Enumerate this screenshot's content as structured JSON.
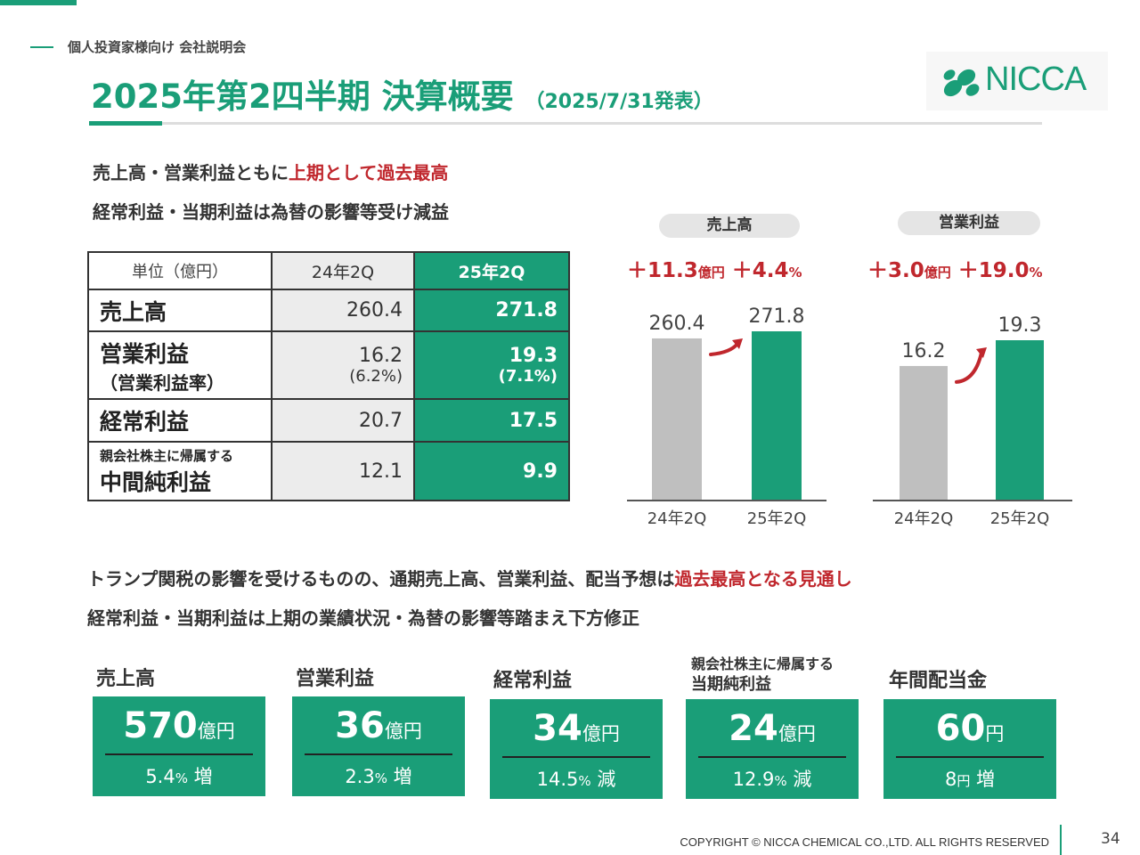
{
  "header": {
    "subtitle": "個人投資家様向け 会社説明会",
    "title": "2025年第2四半期 決算概要",
    "title_date": "（2025/7/31発表）",
    "logo_text": "NICCA"
  },
  "headline1": {
    "part1": "売上高・営業利益ともに",
    "highlight": "上期として過去最高"
  },
  "headline2": "経常利益・当期利益は為替の影響等受け減益",
  "table": {
    "header": {
      "unit": "単位（億円）",
      "prev": "24年2Q",
      "curr": "25年2Q"
    },
    "rows": [
      {
        "label": "売上高",
        "prev": "260.4",
        "curr": "271.8"
      },
      {
        "label": "営業利益",
        "sub_label": "（営業利益率）",
        "prev": "16.2",
        "prev_sub": "(6.2%)",
        "curr": "19.3",
        "curr_sub": "(7.1%)"
      },
      {
        "label": "経常利益",
        "prev": "20.7",
        "curr": "17.5"
      },
      {
        "label_small": "親会社株主に帰属する",
        "label": "中間純利益",
        "prev": "12.1",
        "curr": "9.9"
      }
    ]
  },
  "chart_data": [
    {
      "type": "bar",
      "title": "売上高",
      "categories": [
        "24年2Q",
        "25年2Q"
      ],
      "values": [
        260.4,
        271.8
      ],
      "value_labels": [
        "260.4",
        "271.8"
      ],
      "growth": {
        "abs_value": "＋11.3",
        "abs_unit": "億円",
        "pct_value": "＋4.4",
        "pct_unit": "%"
      },
      "colors": [
        "#bfbfbf",
        "#1a9e78"
      ]
    },
    {
      "type": "bar",
      "title": "営業利益",
      "categories": [
        "24年2Q",
        "25年2Q"
      ],
      "values": [
        16.2,
        19.3
      ],
      "value_labels": [
        "16.2",
        "19.3"
      ],
      "growth": {
        "abs_value": "＋3.0",
        "abs_unit": "億円",
        "pct_value": "＋19.0",
        "pct_unit": "%"
      },
      "colors": [
        "#bfbfbf",
        "#1a9e78"
      ]
    }
  ],
  "headline3": {
    "part1": "トランプ関税の影響を受けるものの、通期売上高、営業利益、配当予想は",
    "highlight": "過去最高となる見通し"
  },
  "headline4": "経常利益・当期利益は上期の業績状況・為替の影響等踏まえ下方修正",
  "forecast": [
    {
      "label": "売上高",
      "value": "570",
      "unit": "億円",
      "change": "5.4",
      "change_pct": "%",
      "change_dir": "増"
    },
    {
      "label": "営業利益",
      "value": "36",
      "unit": "億円",
      "change": "2.3",
      "change_pct": "%",
      "change_dir": "増"
    },
    {
      "label": "経常利益",
      "value": "34",
      "unit": "億円",
      "change": "14.5",
      "change_pct": "%",
      "change_dir": "減"
    },
    {
      "label_small": "親会社株主に帰属する",
      "label": "当期純利益",
      "value": "24",
      "unit": "億円",
      "change": "12.9",
      "change_pct": "%",
      "change_dir": "減"
    },
    {
      "label": "年間配当金",
      "value": "60",
      "unit": "円",
      "change": "8",
      "change_pct": "円",
      "change_dir": "増"
    }
  ],
  "footer": {
    "copyright": "COPYRIGHT © NICCA CHEMICAL CO.,LTD. ALL RIGHTS RESERVED",
    "page": "34"
  },
  "colors": {
    "accent": "#1a9e78",
    "highlight": "#c0272d",
    "bar_prev": "#bfbfbf"
  }
}
